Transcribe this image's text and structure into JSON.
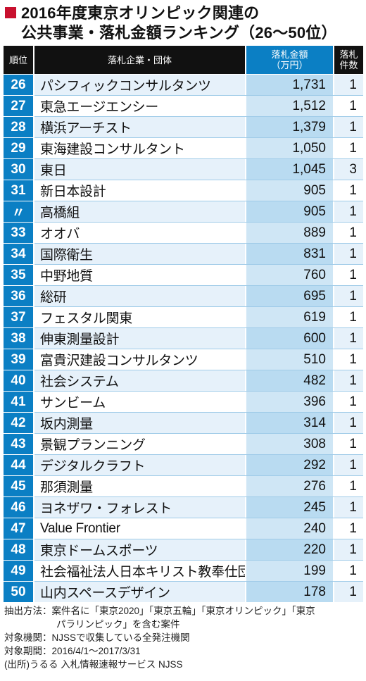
{
  "title": {
    "line1": "2016年度東京オリンピック関連の",
    "line2": "公共事業・落札金額ランキング（26〜50位）"
  },
  "colors": {
    "accent_blue": "#0b7fc4",
    "title_mark_red": "#c8102e",
    "header_black": "#111111"
  },
  "chart_data": {
    "type": "table",
    "title": "2016年度東京オリンピック関連の公共事業・落札金額ランキング（26〜50位）",
    "columns": [
      "順位",
      "落札企業・団体",
      "落札金額（万円）",
      "落札件数"
    ],
    "rows": [
      {
        "rank": "26",
        "company": "パシフィックコンサルタンツ",
        "amount": "1,731",
        "count": "1"
      },
      {
        "rank": "27",
        "company": "東急エージエンシー",
        "amount": "1,512",
        "count": "1"
      },
      {
        "rank": "28",
        "company": "横浜アーチスト",
        "amount": "1,379",
        "count": "1"
      },
      {
        "rank": "29",
        "company": "東海建設コンサルタント",
        "amount": "1,050",
        "count": "1"
      },
      {
        "rank": "30",
        "company": "東日",
        "amount": "1,045",
        "count": "3"
      },
      {
        "rank": "31",
        "company": "新日本設計",
        "amount": "905",
        "count": "1"
      },
      {
        "rank": "〃",
        "company": "高橋組",
        "amount": "905",
        "count": "1"
      },
      {
        "rank": "33",
        "company": "オオバ",
        "amount": "889",
        "count": "1"
      },
      {
        "rank": "34",
        "company": "国際衛生",
        "amount": "831",
        "count": "1"
      },
      {
        "rank": "35",
        "company": "中野地質",
        "amount": "760",
        "count": "1"
      },
      {
        "rank": "36",
        "company": "総研",
        "amount": "695",
        "count": "1"
      },
      {
        "rank": "37",
        "company": "フェスタル関東",
        "amount": "619",
        "count": "1"
      },
      {
        "rank": "38",
        "company": "伸東測量設計",
        "amount": "600",
        "count": "1"
      },
      {
        "rank": "39",
        "company": "富貴沢建設コンサルタンツ",
        "amount": "510",
        "count": "1"
      },
      {
        "rank": "40",
        "company": "社会システム",
        "amount": "482",
        "count": "1"
      },
      {
        "rank": "41",
        "company": "サンビーム",
        "amount": "396",
        "count": "1"
      },
      {
        "rank": "42",
        "company": "坂内測量",
        "amount": "314",
        "count": "1"
      },
      {
        "rank": "43",
        "company": "景観プランニング",
        "amount": "308",
        "count": "1"
      },
      {
        "rank": "44",
        "company": "デジタルクラフト",
        "amount": "292",
        "count": "1"
      },
      {
        "rank": "45",
        "company": "那須測量",
        "amount": "276",
        "count": "1"
      },
      {
        "rank": "46",
        "company": "ヨネザワ・フォレスト",
        "amount": "245",
        "count": "1"
      },
      {
        "rank": "47",
        "company": "Value Frontier",
        "amount": "240",
        "count": "1"
      },
      {
        "rank": "48",
        "company": "東京ドームスポーツ",
        "amount": "220",
        "count": "1"
      },
      {
        "rank": "49",
        "company": "社会福祉法人日本キリスト教奉仕団",
        "amount": "199",
        "count": "1"
      },
      {
        "rank": "50",
        "company": "山内スペースデザイン",
        "amount": "178",
        "count": "1"
      }
    ]
  },
  "header": {
    "rank": "順位",
    "company": "落札企業・団体",
    "amount_line1": "落札金額",
    "amount_line2": "（万円）",
    "count_line1": "落札",
    "count_line2": "件数"
  },
  "notes": [
    "抽出方法：案件名に「東京2020」「東京五輪」「東京オリンピック」「東京",
    "パラリンピック」を含む案件",
    "対象機関：NJSSで収集している全発注機関",
    "対象期間：2016/4/1〜2017/3/31",
    "(出所)うるる 入札情報速報サービス NJSS"
  ]
}
